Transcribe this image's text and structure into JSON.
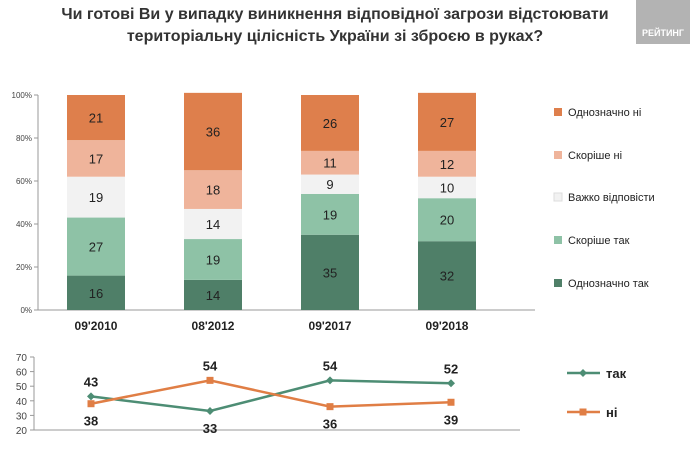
{
  "title": "Чи готові Ви у випадку виникнення відповідної загрози відстоювати територіальну цілісність України зі зброєю в руках?",
  "logo_text": "РЕЙТИНГ",
  "chart_data": [
    {
      "type": "bar",
      "stacked": true,
      "categories": [
        "09'2010",
        "08'2012",
        "09'2017",
        "09'2018"
      ],
      "series": [
        {
          "name": "Однозначно так",
          "color": "#4f7f68",
          "values": [
            16,
            14,
            35,
            32
          ]
        },
        {
          "name": "Скоріше так",
          "color": "#8ec2a6",
          "values": [
            27,
            19,
            19,
            20
          ]
        },
        {
          "name": "Важко відповісти",
          "color": "#f2f2f2",
          "values": [
            19,
            14,
            9,
            10
          ]
        },
        {
          "name": "Скоріше ні",
          "color": "#efb49b",
          "values": [
            17,
            18,
            11,
            12
          ]
        },
        {
          "name": "Однозначно ні",
          "color": "#de7f4c",
          "values": [
            21,
            36,
            26,
            27
          ]
        }
      ],
      "yticks": [
        "0%",
        "20%",
        "40%",
        "60%",
        "80%",
        "100%"
      ],
      "ylim": [
        0,
        100
      ],
      "legend_position": "right"
    },
    {
      "type": "line",
      "categories": [
        "09'2010",
        "08'2012",
        "09'2017",
        "09'2018"
      ],
      "series": [
        {
          "name": "так",
          "color": "#4d8d74",
          "values": [
            43,
            33,
            54,
            52
          ]
        },
        {
          "name": "ні",
          "color": "#e07e45",
          "values": [
            38,
            54,
            36,
            39
          ]
        }
      ],
      "yticks": [
        "20",
        "30",
        "40",
        "50",
        "60",
        "70"
      ],
      "ylim": [
        20,
        70
      ],
      "legend_position": "right"
    }
  ]
}
